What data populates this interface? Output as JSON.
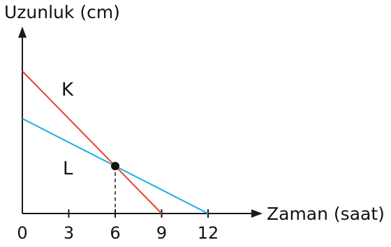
{
  "chart_data": {
    "type": "line",
    "title": "",
    "xlabel": "Zaman (saat)",
    "ylabel": "Uzunluk (cm)",
    "x_ticks": [
      0,
      3,
      6,
      9,
      12
    ],
    "xlim": [
      0,
      12
    ],
    "grid": false,
    "legend": "none",
    "series": [
      {
        "name": "K",
        "color": "#e8402f",
        "points": [
          {
            "x": 0,
            "y": 2
          },
          {
            "x": 6,
            "y": 0.667
          },
          {
            "x": 9,
            "y": 0
          }
        ]
      },
      {
        "name": "L",
        "color": "#1aaee5",
        "points": [
          {
            "x": 0,
            "y": 1.333
          },
          {
            "x": 6,
            "y": 0.667
          },
          {
            "x": 12,
            "y": 0
          }
        ]
      }
    ],
    "intersection": {
      "x": 6,
      "y": 0.667,
      "marker_color": "#111111"
    }
  }
}
